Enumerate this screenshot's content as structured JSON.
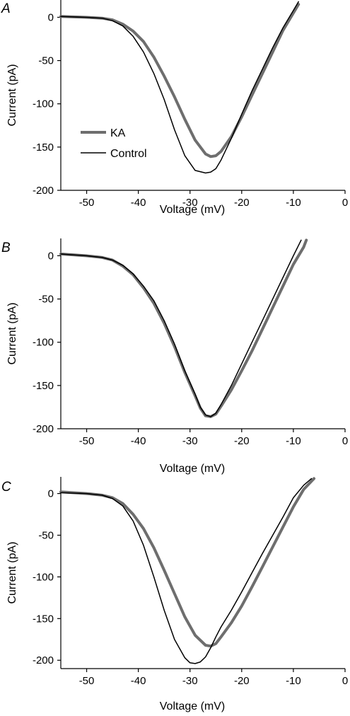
{
  "chart_data": [
    {
      "type": "line",
      "panel": "A",
      "xlabel": "Voltage (mV)",
      "ylabel": "Current (pA)",
      "xlim": [
        -55,
        0
      ],
      "ylim": [
        -200,
        20
      ],
      "xticks": [
        -50,
        -40,
        -30,
        -20,
        -10,
        0
      ],
      "yticks": [
        0,
        -50,
        -100,
        -150,
        -200
      ],
      "legend": {
        "placement": "center-left",
        "entries": [
          "KA",
          "Control"
        ]
      },
      "series": [
        {
          "name": "KA",
          "color": "#6e6e6e",
          "x": [
            -55,
            -50,
            -47,
            -45,
            -43,
            -41,
            -39,
            -37,
            -35,
            -33,
            -31,
            -29,
            -27,
            -26,
            -25,
            -24,
            -22,
            -20,
            -18,
            -16,
            -14,
            -12,
            -10,
            -9
          ],
          "y": [
            1,
            0,
            -1,
            -3,
            -8,
            -16,
            -28,
            -46,
            -68,
            -92,
            -118,
            -142,
            -158,
            -161,
            -160,
            -155,
            -138,
            -115,
            -90,
            -65,
            -40,
            -15,
            5,
            15
          ]
        },
        {
          "name": "Control",
          "color": "#000000",
          "x": [
            -55,
            -50,
            -47,
            -45,
            -43,
            -41,
            -39,
            -37,
            -35,
            -33,
            -31,
            -29,
            -27,
            -26,
            -25,
            -24,
            -22,
            -20,
            -18,
            -16,
            -14,
            -12,
            -10,
            -9
          ],
          "y": [
            1,
            0,
            -1,
            -4,
            -10,
            -22,
            -40,
            -65,
            -95,
            -130,
            -160,
            -177,
            -180,
            -179,
            -175,
            -165,
            -140,
            -112,
            -85,
            -60,
            -35,
            -12,
            8,
            18
          ]
        }
      ]
    },
    {
      "type": "line",
      "panel": "B",
      "xlabel": "Voltage (mV)",
      "ylabel": "Current (pA)",
      "xlim": [
        -55,
        0
      ],
      "ylim": [
        -200,
        20
      ],
      "xticks": [
        -50,
        -40,
        -30,
        -20,
        -10,
        0
      ],
      "yticks": [
        0,
        -50,
        -100,
        -150,
        -200
      ],
      "series": [
        {
          "name": "KA",
          "color": "#6e6e6e",
          "x": [
            -55,
            -50,
            -47,
            -45,
            -43,
            -41,
            -39,
            -37,
            -35,
            -33,
            -31,
            -29,
            -28,
            -27,
            -26,
            -25,
            -24,
            -22,
            -20,
            -18,
            -16,
            -14,
            -12,
            -10,
            -8,
            -7.5
          ],
          "y": [
            2,
            0,
            -2,
            -5,
            -12,
            -22,
            -37,
            -55,
            -78,
            -105,
            -135,
            -162,
            -176,
            -185,
            -186,
            -183,
            -174,
            -155,
            -133,
            -110,
            -85,
            -60,
            -35,
            -10,
            10,
            18
          ]
        },
        {
          "name": "Control",
          "color": "#000000",
          "x": [
            -55,
            -50,
            -47,
            -45,
            -43,
            -41,
            -39,
            -37,
            -35,
            -33,
            -31,
            -29,
            -28,
            -27,
            -26,
            -25,
            -24,
            -22,
            -20,
            -18,
            -16,
            -14,
            -12,
            -10,
            -8.5
          ],
          "y": [
            2,
            0,
            -2,
            -5,
            -11,
            -21,
            -35,
            -52,
            -75,
            -102,
            -133,
            -160,
            -175,
            -184,
            -186,
            -182,
            -172,
            -150,
            -125,
            -100,
            -75,
            -50,
            -25,
            0,
            18
          ]
        }
      ]
    },
    {
      "type": "line",
      "panel": "C",
      "xlabel": "Voltage (mV)",
      "ylabel": "Current (pA)",
      "xlim": [
        -55,
        0
      ],
      "ylim": [
        -210,
        20
      ],
      "xticks": [
        -50,
        -40,
        -30,
        -20,
        -10,
        0
      ],
      "yticks": [
        0,
        -50,
        -100,
        -150,
        -200
      ],
      "series": [
        {
          "name": "KA",
          "color": "#6e6e6e",
          "x": [
            -55,
            -50,
            -47,
            -45,
            -43,
            -41,
            -39,
            -37,
            -35,
            -33,
            -31,
            -29,
            -27,
            -26,
            -25,
            -24,
            -22,
            -20,
            -18,
            -16,
            -14,
            -12,
            -10,
            -8,
            -6
          ],
          "y": [
            2,
            0,
            -2,
            -5,
            -12,
            -25,
            -42,
            -65,
            -92,
            -120,
            -148,
            -170,
            -182,
            -183,
            -180,
            -172,
            -155,
            -135,
            -112,
            -88,
            -64,
            -40,
            -16,
            5,
            18
          ]
        },
        {
          "name": "Control",
          "color": "#000000",
          "x": [
            -55,
            -50,
            -47,
            -45,
            -43,
            -41,
            -39,
            -37,
            -35,
            -33,
            -31,
            -30,
            -29,
            -28,
            -27,
            -26,
            -25,
            -24,
            -22,
            -20,
            -18,
            -16,
            -14,
            -12,
            -10,
            -8,
            -6.5
          ],
          "y": [
            1,
            0,
            -2,
            -6,
            -15,
            -33,
            -62,
            -100,
            -140,
            -175,
            -197,
            -203,
            -204,
            -202,
            -196,
            -185,
            -172,
            -160,
            -140,
            -118,
            -95,
            -72,
            -50,
            -28,
            -5,
            10,
            18
          ]
        }
      ]
    }
  ]
}
